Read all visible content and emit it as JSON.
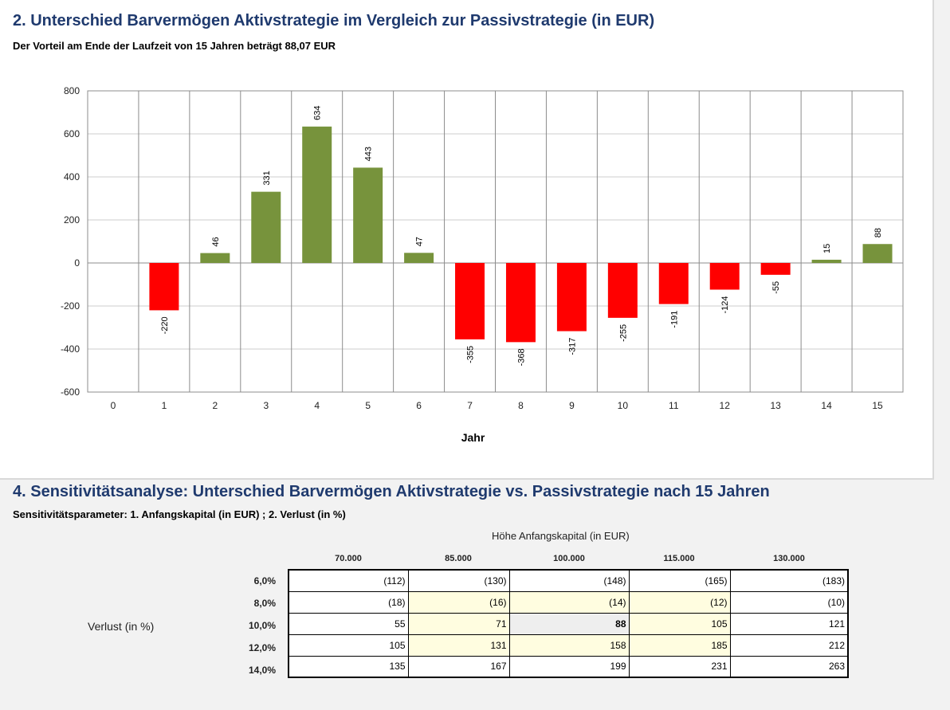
{
  "section2": {
    "title": "2. Unterschied Barvermögen Aktivstrategie im Vergleich zur Passivstrategie  (in EUR)",
    "subtitle": "Der Vorteil am Ende der Laufzeit von 15 Jahren beträgt 88,07 EUR"
  },
  "chart_data": {
    "type": "bar",
    "title": "",
    "xlabel": "Jahr",
    "ylabel": "",
    "categories": [
      "0",
      "1",
      "2",
      "3",
      "4",
      "5",
      "6",
      "7",
      "8",
      "9",
      "10",
      "11",
      "12",
      "13",
      "14",
      "15"
    ],
    "values": [
      null,
      -220,
      46,
      331,
      634,
      443,
      47,
      -355,
      -368,
      -317,
      -255,
      -191,
      -124,
      -55,
      15,
      88
    ],
    "data_labels": [
      "",
      "-220",
      "46",
      "331",
      "634",
      "443",
      "47",
      "-355",
      "-368",
      "-317",
      "-255",
      "-191",
      "-124",
      "-55",
      "15",
      "88"
    ],
    "ylim": [
      -600,
      800
    ],
    "yticks": [
      800,
      600,
      400,
      200,
      0,
      -200,
      -400,
      -600
    ],
    "grid": true,
    "colors": {
      "positive": "#77933c",
      "negative": "#ff0000"
    }
  },
  "section4": {
    "title": "4. Sensitivitätsanalyse: Unterschied Barvermögen Aktivstrategie vs. Passivstrategie nach 15 Jahren",
    "subtitle": "Sensitivitätsparameter: 1. Anfangskapital (in EUR) ; 2. Verlust (in %)",
    "column_axis_label": "Höhe Anfangskapital (in EUR)",
    "row_axis_label": "Verlust (in %)",
    "columns": [
      "70.000",
      "85.000",
      "100.000",
      "115.000",
      "130.000"
    ],
    "rows": [
      "6,0%",
      "8,0%",
      "10,0%",
      "12,0%",
      "14,0%"
    ],
    "cells": [
      [
        "(112)",
        "(130)",
        "(148)",
        "(165)",
        "(183)"
      ],
      [
        "(18)",
        "(16)",
        "(14)",
        "(12)",
        "(10)"
      ],
      [
        "55",
        "71",
        "88",
        "105",
        "121"
      ],
      [
        "105",
        "131",
        "158",
        "185",
        "212"
      ],
      [
        "135",
        "167",
        "199",
        "231",
        "263"
      ]
    ]
  }
}
